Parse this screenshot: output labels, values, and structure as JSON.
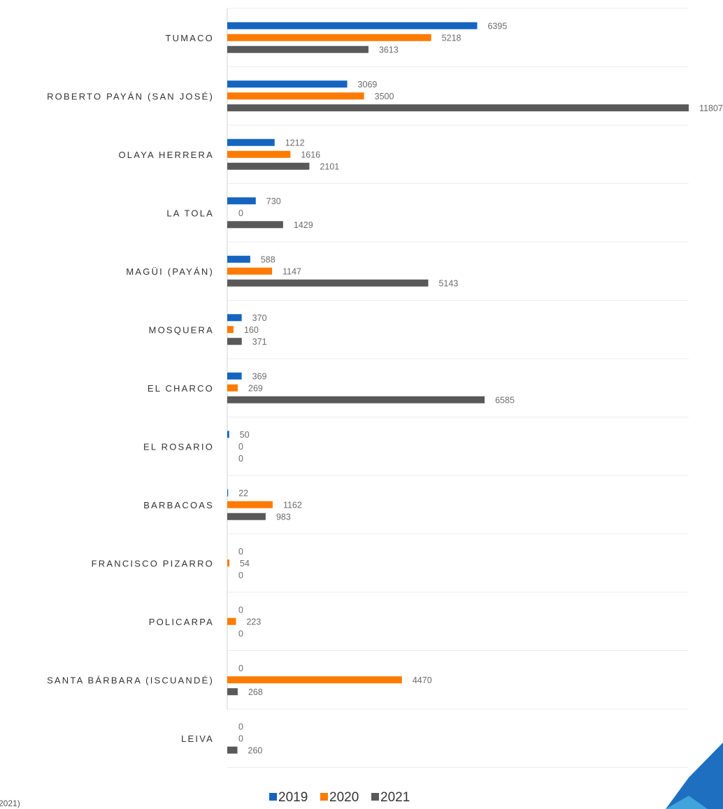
{
  "chart_data": {
    "type": "bar",
    "orientation": "horizontal",
    "categories": [
      "TUMACO",
      "ROBERTO PAYÁN (SAN JOSÉ)",
      "OLAYA HERRERA",
      "LA TOLA",
      "MAGÜI (PAYÁN)",
      "MOSQUERA",
      "EL CHARCO",
      "EL ROSARIO",
      "BARBACOAS",
      "FRANCISCO PIZARRO",
      "POLICARPA",
      "SANTA BÁRBARA (ISCUANDÉ)",
      "LEIVA"
    ],
    "series": [
      {
        "name": "2019",
        "color": "#1565c0",
        "values": [
          6395,
          3069,
          1212,
          730,
          588,
          370,
          369,
          50,
          22,
          0,
          0,
          0,
          0
        ]
      },
      {
        "name": "2020",
        "color": "#ff7a00",
        "values": [
          5218,
          3500,
          1616,
          0,
          1147,
          160,
          269,
          0,
          1162,
          54,
          223,
          4470,
          0
        ]
      },
      {
        "name": "2021",
        "color": "#595959",
        "values": [
          3613,
          11807,
          2101,
          1429,
          5143,
          371,
          6585,
          0,
          983,
          0,
          0,
          268,
          260
        ]
      }
    ],
    "xlim": [
      0,
      11807
    ],
    "grid": true,
    "legend_position": "bottom",
    "title": "",
    "xlabel": "",
    "ylabel": ""
  },
  "footer": {
    "source_fragment": "2021)"
  },
  "decor": {
    "corner_color": "#1e6fc0",
    "corner_highlight": "#41a3dc"
  }
}
